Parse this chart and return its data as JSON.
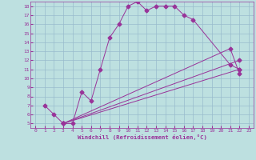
{
  "xlabel": "Windchill (Refroidissement éolien,°C)",
  "bg_color": "#bde0e0",
  "grid_color": "#99bbcc",
  "line_color": "#993399",
  "xlim": [
    -0.5,
    23.5
  ],
  "ylim": [
    4.5,
    18.5
  ],
  "xticks": [
    0,
    1,
    2,
    3,
    4,
    5,
    6,
    7,
    8,
    9,
    10,
    11,
    12,
    13,
    14,
    15,
    16,
    17,
    18,
    19,
    20,
    21,
    22,
    23
  ],
  "yticks": [
    5,
    6,
    7,
    8,
    9,
    10,
    11,
    12,
    13,
    14,
    15,
    16,
    17,
    18
  ],
  "curve1_x": [
    1,
    2,
    3,
    4,
    5,
    6,
    7,
    8,
    9,
    10,
    11,
    12,
    13,
    14,
    15,
    16,
    17,
    21,
    22
  ],
  "curve1_y": [
    7,
    6,
    5,
    5,
    8.5,
    7.5,
    11,
    14.5,
    16,
    18,
    18.5,
    17.5,
    18,
    18,
    18,
    17,
    16.5,
    11.5,
    11
  ],
  "curve2_x": [
    3,
    22
  ],
  "curve2_y": [
    5,
    11
  ],
  "curve3_x": [
    3,
    22
  ],
  "curve3_y": [
    5,
    12
  ],
  "curve4_x": [
    3,
    21,
    22
  ],
  "curve4_y": [
    5,
    13.3,
    10.5
  ]
}
